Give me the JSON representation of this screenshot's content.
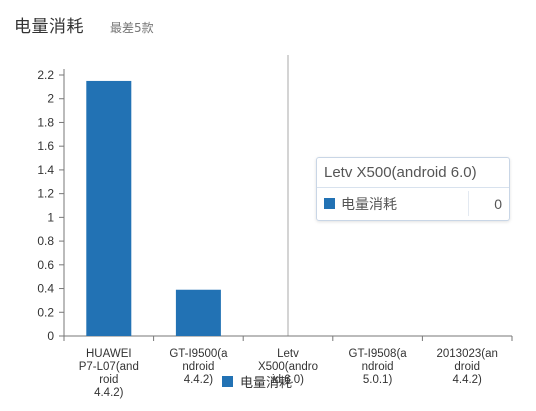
{
  "header": {
    "title": "电量消耗",
    "subtitle": "最差5款"
  },
  "colors": {
    "bar": "#2272b4",
    "axis": "#777777",
    "crosshair": "#a8a8a8"
  },
  "chart_data": {
    "type": "bar",
    "categories": [
      [
        "HUAWEI",
        "P7-L07(and",
        "roid",
        "4.4.2)"
      ],
      [
        "GT-I9500(a",
        "ndroid",
        "4.4.2)"
      ],
      [
        "Letv",
        "X500(andro",
        "id 6.0)"
      ],
      [
        "GT-I9508(a",
        "ndroid",
        "5.0.1)"
      ],
      [
        "2013023(an",
        "droid",
        "4.4.2)"
      ]
    ],
    "series": [
      {
        "name": "电量消耗",
        "values": [
          2.15,
          0.39,
          0,
          0,
          0
        ]
      }
    ],
    "ylim": [
      0,
      2.2
    ],
    "yticks": [
      "0",
      "0.2",
      "0.4",
      "0.6",
      "0.8",
      "1",
      "1.2",
      "1.4",
      "1.6",
      "1.8",
      "2",
      "2.2"
    ],
    "legend_position": "bottom",
    "highlight_category_index": 2
  },
  "tooltip": {
    "title": "Letv X500(android 6.0)",
    "series_name": "电量消耗",
    "value": "0"
  },
  "legend": {
    "label": "电量消耗"
  }
}
